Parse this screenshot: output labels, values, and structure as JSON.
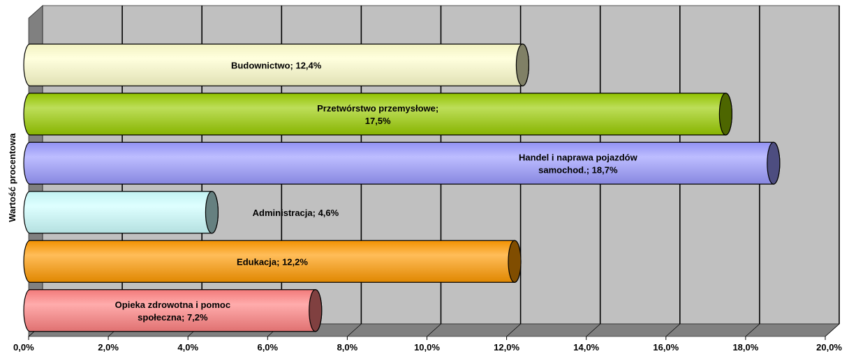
{
  "chart_data": {
    "type": "bar",
    "orientation": "horizontal",
    "style": "3d-cylinder",
    "ylabel": "Wartość procentowa",
    "xlabel": "",
    "xlim": [
      0,
      20
    ],
    "x_ticks": [
      "0,0%",
      "2,0%",
      "4,0%",
      "6,0%",
      "8,0%",
      "10,0%",
      "12,0%",
      "14,0%",
      "16,0%",
      "18,0%",
      "20,0%"
    ],
    "grid": true,
    "bars": [
      {
        "label_lines": [
          "Budownictwo; 12,4%"
        ],
        "value": 12.4,
        "color": "#FFFFCC"
      },
      {
        "label_lines": [
          "Przetwórstwo przemysłowe;",
          "17,5%"
        ],
        "value": 17.5,
        "color": "#99CC00"
      },
      {
        "label_lines": [
          "Handel i naprawa pojazdów",
          "samochod.; 18,7%"
        ],
        "value": 18.7,
        "color": "#9999FF"
      },
      {
        "label_lines": [
          "Administracja; 4,6%"
        ],
        "value": 4.6,
        "color": "#CCFFFF"
      },
      {
        "label_lines": [
          "Edukacja; 12,2%"
        ],
        "value": 12.2,
        "color": "#FF9900"
      },
      {
        "label_lines": [
          "Opieka zdrowotna i pomoc",
          "społeczna; 7,2%"
        ],
        "value": 7.2,
        "color": "#FF8080"
      }
    ],
    "colors": {
      "wall": "#C0C0C0",
      "floor": "#808080",
      "side_wall": "#808080",
      "grid": "#000000"
    }
  }
}
